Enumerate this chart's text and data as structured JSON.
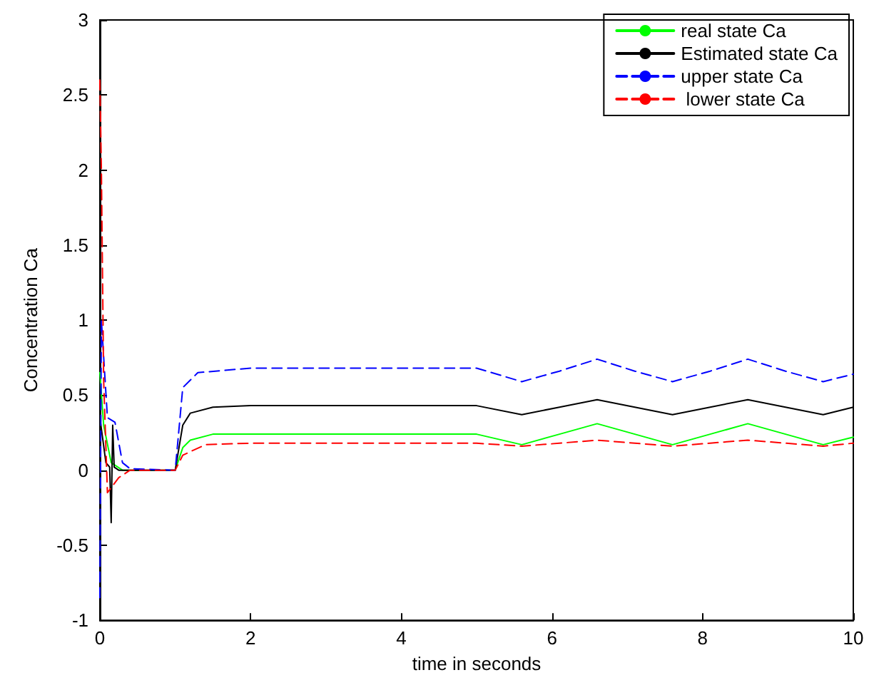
{
  "chart_data": {
    "type": "line",
    "xlabel": "time in seconds",
    "ylabel": "Concentration Ca",
    "xlim": [
      0,
      10
    ],
    "ylim": [
      -1,
      3
    ],
    "xticks": [
      0,
      2,
      4,
      6,
      8,
      10
    ],
    "yticks": [
      -1,
      -0.5,
      0,
      0.5,
      1,
      1.5,
      2,
      2.5,
      3
    ],
    "grid": false,
    "legend": "top right",
    "marker": "none",
    "series": [
      {
        "name": "real state Ca",
        "color": "#00ff00",
        "line_style": "solid",
        "x": [
          0,
          0.05,
          0.15,
          0.3,
          1.0,
          1.1,
          1.2,
          1.5,
          2,
          5,
          5.6,
          6.1,
          6.6,
          7.1,
          7.6,
          8.1,
          8.6,
          9.1,
          9.6,
          10
        ],
        "values": [
          0.65,
          0.3,
          0.05,
          0,
          0,
          0.15,
          0.2,
          0.24,
          0.24,
          0.24,
          0.17,
          0.24,
          0.31,
          0.24,
          0.17,
          0.24,
          0.31,
          0.24,
          0.17,
          0.22
        ]
      },
      {
        "name": "Estimated state Ca",
        "color": "#000000",
        "line_style": "solid",
        "x": [
          0,
          0.08,
          0.13,
          0.15,
          0.17,
          0.19,
          0.25,
          1.0,
          1.1,
          1.2,
          1.5,
          2,
          5,
          5.6,
          6.1,
          6.6,
          7.1,
          7.6,
          8.1,
          8.6,
          9.1,
          9.6,
          10
        ],
        "values": [
          0.35,
          0.05,
          0.02,
          -0.35,
          0.3,
          0.02,
          0,
          0,
          0.3,
          0.38,
          0.42,
          0.43,
          0.43,
          0.37,
          0.42,
          0.47,
          0.42,
          0.37,
          0.42,
          0.47,
          0.42,
          0.37,
          0.42
        ]
      },
      {
        "name": "upper state Ca",
        "color": "#0000ff",
        "line_style": "dashed",
        "x": [
          0,
          0.02,
          0.1,
          0.2,
          0.3,
          0.4,
          1.0,
          1.1,
          1.3,
          2,
          5,
          5.6,
          6.1,
          6.6,
          7.1,
          7.6,
          8.1,
          8.6,
          9.1,
          9.6,
          10
        ],
        "values": [
          -0.85,
          1.0,
          0.35,
          0.32,
          0.05,
          0.01,
          0,
          0.55,
          0.65,
          0.68,
          0.68,
          0.59,
          0.66,
          0.74,
          0.66,
          0.59,
          0.66,
          0.74,
          0.66,
          0.59,
          0.64
        ]
      },
      {
        "name": " lower state Ca",
        "color": "#ff0000",
        "line_style": "dashed",
        "x": [
          0,
          0.02,
          0.05,
          0.1,
          0.25,
          0.4,
          1.0,
          1.1,
          1.4,
          2,
          5,
          5.6,
          6.1,
          6.6,
          7.1,
          7.6,
          8.1,
          8.6,
          9.1,
          9.6,
          10
        ],
        "values": [
          2.6,
          2.0,
          0.6,
          -0.15,
          -0.05,
          0,
          0,
          0.1,
          0.17,
          0.18,
          0.18,
          0.16,
          0.18,
          0.2,
          0.18,
          0.16,
          0.18,
          0.2,
          0.18,
          0.16,
          0.18
        ]
      }
    ]
  }
}
